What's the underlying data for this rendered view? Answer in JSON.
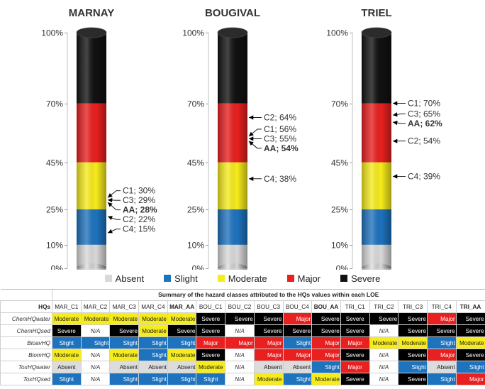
{
  "chart_data": [
    {
      "type": "bar",
      "title": "MARNAY",
      "y_ticks": [
        "0%",
        "10%",
        "25%",
        "45%",
        "70%",
        "100%"
      ],
      "tick_values": [
        0,
        10,
        25,
        45,
        70,
        100
      ],
      "ylim": [
        0,
        100
      ],
      "bands": [
        {
          "name": "Absent",
          "from": 0,
          "to": 10
        },
        {
          "name": "Slight",
          "from": 10,
          "to": 25
        },
        {
          "name": "Moderate",
          "from": 25,
          "to": 45
        },
        {
          "name": "Major",
          "from": 45,
          "to": 70
        },
        {
          "name": "Severe",
          "from": 70,
          "to": 100
        }
      ],
      "annotations": [
        {
          "label": "C1; 30%",
          "value": 30,
          "bold": false
        },
        {
          "label": "C3; 29%",
          "value": 29,
          "bold": false
        },
        {
          "label": "AA; 28%",
          "value": 28,
          "bold": true
        },
        {
          "label": "C2; 22%",
          "value": 22,
          "bold": false
        },
        {
          "label": "C4; 15%",
          "value": 15,
          "bold": false
        }
      ]
    },
    {
      "type": "bar",
      "title": "BOUGIVAL",
      "y_ticks": [
        "0%",
        "10%",
        "25%",
        "45%",
        "70%",
        "100%"
      ],
      "tick_values": [
        0,
        10,
        25,
        45,
        70,
        100
      ],
      "ylim": [
        0,
        100
      ],
      "bands": [
        {
          "name": "Absent",
          "from": 0,
          "to": 10
        },
        {
          "name": "Slight",
          "from": 10,
          "to": 25
        },
        {
          "name": "Moderate",
          "from": 25,
          "to": 45
        },
        {
          "name": "Major",
          "from": 45,
          "to": 70
        },
        {
          "name": "Severe",
          "from": 70,
          "to": 100
        }
      ],
      "annotations": [
        {
          "label": "C2; 64%",
          "value": 64,
          "bold": false
        },
        {
          "label": "C1; 56%",
          "value": 56,
          "bold": false
        },
        {
          "label": "C3; 55%",
          "value": 55,
          "bold": false
        },
        {
          "label": "AA; 54%",
          "value": 54,
          "bold": true
        },
        {
          "label": "C4; 38%",
          "value": 38,
          "bold": false
        }
      ]
    },
    {
      "type": "bar",
      "title": "TRIEL",
      "y_ticks": [
        "0%",
        "10%",
        "25%",
        "45%",
        "70%",
        "100%"
      ],
      "tick_values": [
        0,
        10,
        25,
        45,
        70,
        100
      ],
      "ylim": [
        0,
        100
      ],
      "bands": [
        {
          "name": "Absent",
          "from": 0,
          "to": 10
        },
        {
          "name": "Slight",
          "from": 10,
          "to": 25
        },
        {
          "name": "Moderate",
          "from": 25,
          "to": 45
        },
        {
          "name": "Major",
          "from": 45,
          "to": 70
        },
        {
          "name": "Severe",
          "from": 70,
          "to": 100
        }
      ],
      "annotations": [
        {
          "label": "C1; 70%",
          "value": 70,
          "bold": false
        },
        {
          "label": "C3; 65%",
          "value": 65,
          "bold": false
        },
        {
          "label": "AA; 62%",
          "value": 62,
          "bold": true
        },
        {
          "label": "C2; 54%",
          "value": 54,
          "bold": false
        },
        {
          "label": "C4; 39%",
          "value": 39,
          "bold": false
        }
      ]
    }
  ],
  "legend": [
    {
      "label": "Absent",
      "color": "#d9d9d9"
    },
    {
      "label": "Slight",
      "color": "#1e73be"
    },
    {
      "label": "Moderate",
      "color": "#f7ec1b"
    },
    {
      "label": "Major",
      "color": "#e8201f"
    },
    {
      "label": "Severe",
      "color": "#111111"
    }
  ],
  "table": {
    "caption": "Summary of the hazard classes attributed to the HQs values within each LOE",
    "corner_label": "HQs",
    "columns": [
      "MAR_C1",
      "MAR_C2",
      "MAR_C3",
      "MAR_C4",
      "MAR_AA",
      "BOU_C1",
      "BOU_C2",
      "BOU_C3",
      "BOU_C4",
      "BOU_AA",
      "TRI_C1",
      "TRI_C2",
      "TRI_C3",
      "TRI_C4",
      "TRI_AA"
    ],
    "bold_columns": [
      4,
      9,
      14
    ],
    "rows": [
      {
        "head": "ChemHQwater",
        "cells": [
          "Moderate",
          "Moderate",
          "Moderate",
          "Moderate",
          "Moderate",
          "Severe",
          "Severe",
          "Severe",
          "Major",
          "Severe",
          "Severe",
          "Severe",
          "Severe",
          "Major",
          "Severe"
        ]
      },
      {
        "head": "ChemHQsed",
        "cells": [
          "Severe",
          "N/A",
          "Severe",
          "Moderate",
          "Severe",
          "Severe",
          "N/A",
          "Severe",
          "Severe",
          "Severe",
          "Severe",
          "N/A",
          "Severe",
          "Severe",
          "Severe"
        ]
      },
      {
        "head": "BioavHQ",
        "cells": [
          "Slight",
          "Slight",
          "Slight",
          "Slight",
          "Slight",
          "Major",
          "Major",
          "Major",
          "Slight",
          "Major",
          "Major",
          "Moderate",
          "Moderate",
          "Slight",
          "Moderate"
        ]
      },
      {
        "head": "BiomHQ",
        "cells": [
          "Moderate",
          "N/A",
          "Moderate",
          "Slight",
          "Moderate",
          "Severe",
          "N/A",
          "Major",
          "Major",
          "Major",
          "Severe",
          "N/A",
          "Severe",
          "Major",
          "Severe"
        ]
      },
      {
        "head": "ToxHQwater",
        "cells": [
          "Absent",
          "N/A",
          "Absent",
          "Absent",
          "Absent",
          "Moderate",
          "N/A",
          "Absent",
          "Absent",
          "Slight",
          "Major",
          "N/A",
          "Slight",
          "Absent",
          "Slight"
        ]
      },
      {
        "head": "ToxHQsed",
        "cells": [
          "Slight",
          "N/A",
          "Slight",
          "Slight",
          "Slight",
          "Slight",
          "N/A",
          "Moderate",
          "Slight",
          "Moderate",
          "Severe",
          "N/A",
          "Severe",
          "Slight",
          "Major"
        ]
      }
    ]
  }
}
